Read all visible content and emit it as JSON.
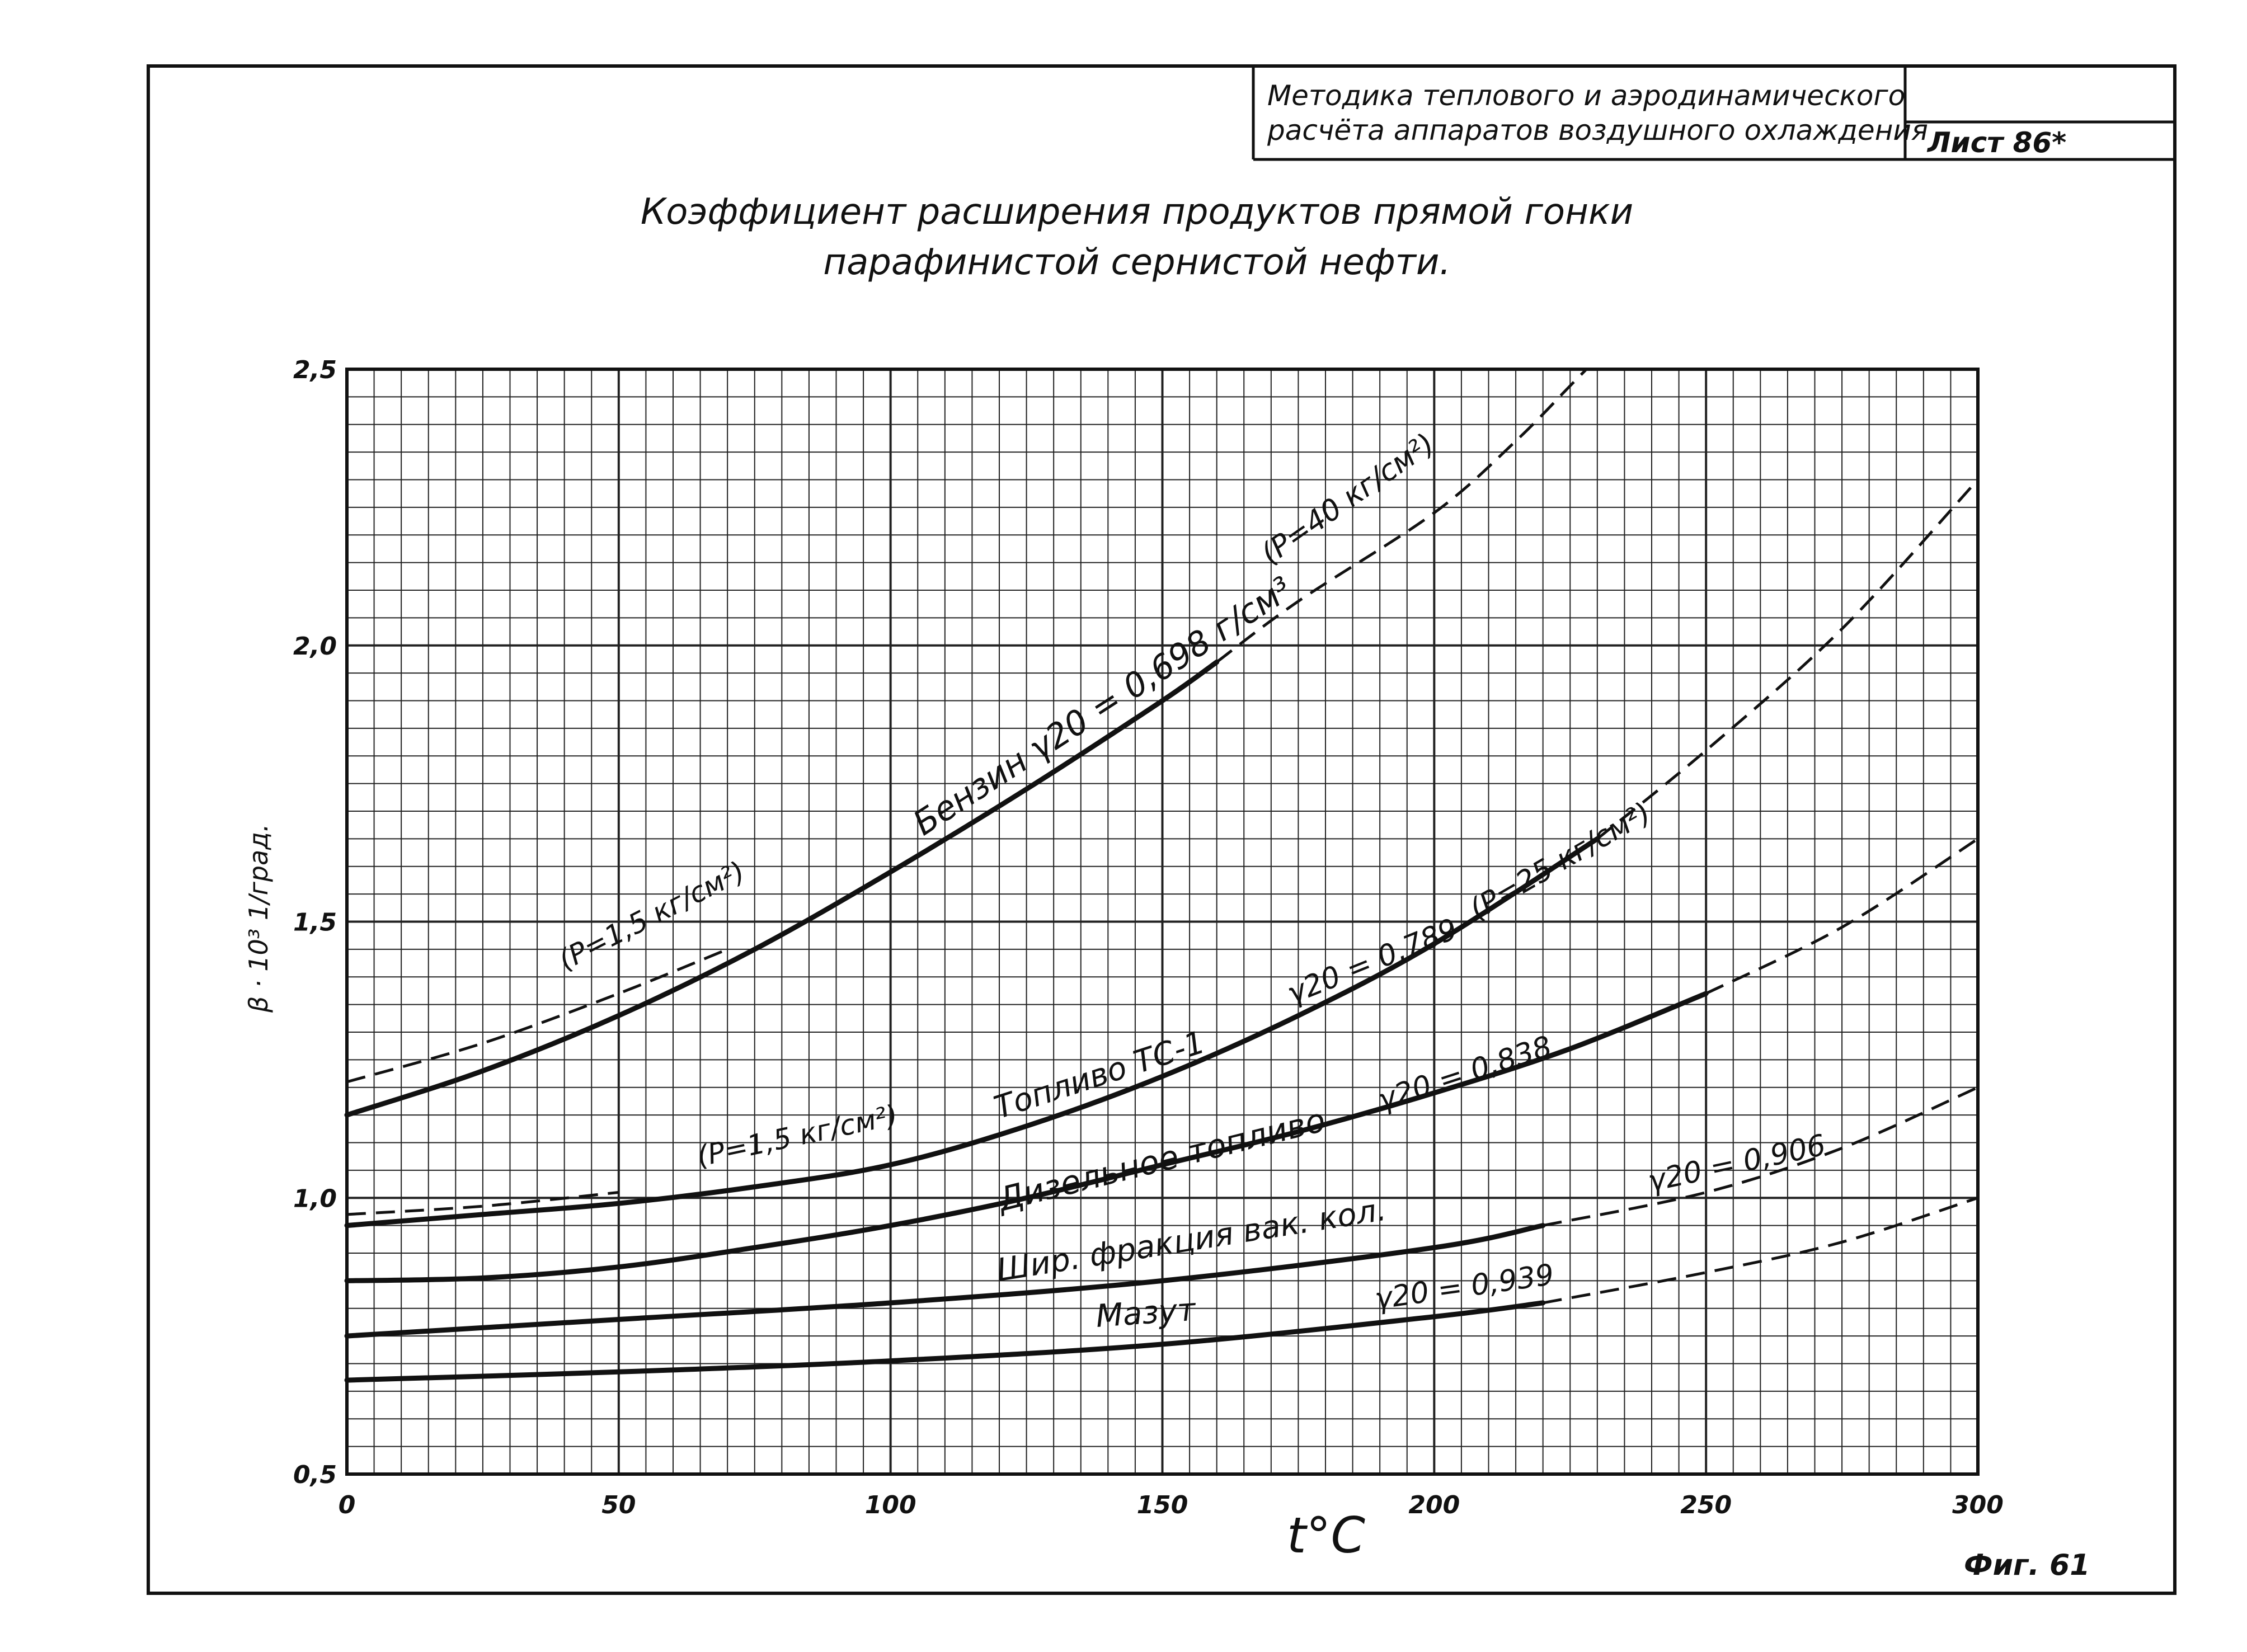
{
  "title_block": {
    "line1": "Методика теплового и аэродинамического",
    "line2": "расчёта аппаратов воздушного охлаждения",
    "sheet_label": "Лист 86*"
  },
  "figure_label": "Фиг. 61",
  "chart_data": {
    "type": "line",
    "title": "Коэффициент расширения продуктов прямой гонки",
    "subtitle": "парафинистой сернистой нефти.",
    "xlabel": "t°C",
    "ylabel": "β · 10³   1/град.",
    "xlim": [
      0,
      300
    ],
    "ylim": [
      0.5,
      2.5
    ],
    "x_ticks": [
      0,
      50,
      100,
      150,
      200,
      250,
      300
    ],
    "x_tick_labels": [
      "0",
      "50",
      "100",
      "150",
      "200",
      "250",
      "300"
    ],
    "y_ticks": [
      0.5,
      1.0,
      1.5,
      2.0,
      2.5
    ],
    "y_tick_labels": [
      "0,5",
      "1,0",
      "1,5",
      "2,0",
      "2,5"
    ],
    "grid": true,
    "grid_minor_x": 5,
    "grid_minor_y": 0.05,
    "series": [
      {
        "name": "Бензин γ20 = 0,698 г/см³",
        "values": [
          [
            0,
            1.15
          ],
          [
            25,
            1.23
          ],
          [
            50,
            1.33
          ],
          [
            75,
            1.45
          ],
          [
            100,
            1.59
          ],
          [
            125,
            1.74
          ],
          [
            150,
            1.9
          ],
          [
            160,
            1.97
          ]
        ],
        "dashed_values": [
          [
            160,
            1.97
          ],
          [
            175,
            2.08
          ],
          [
            200,
            2.24
          ],
          [
            215,
            2.37
          ],
          [
            225,
            2.47
          ],
          [
            228,
            2.5
          ]
        ]
      },
      {
        "name": "(P=1,5 кг/см²)",
        "values": [],
        "dashed_values": [
          [
            0,
            1.21
          ],
          [
            25,
            1.28
          ],
          [
            50,
            1.37
          ],
          [
            70,
            1.45
          ]
        ]
      },
      {
        "name": "Топливо ТС-1 γ20 = 0,789",
        "values": [
          [
            0,
            0.95
          ],
          [
            25,
            0.97
          ],
          [
            50,
            0.99
          ],
          [
            75,
            1.02
          ],
          [
            100,
            1.06
          ],
          [
            125,
            1.13
          ],
          [
            150,
            1.22
          ],
          [
            175,
            1.33
          ],
          [
            200,
            1.46
          ],
          [
            230,
            1.65
          ]
        ],
        "dashed_values": [
          [
            230,
            1.65
          ],
          [
            250,
            1.81
          ],
          [
            275,
            2.03
          ],
          [
            300,
            2.3
          ]
        ]
      },
      {
        "name": "(P=1,5 кг/см²)",
        "values": [],
        "dashed_values": [
          [
            0,
            0.97
          ],
          [
            25,
            0.985
          ],
          [
            50,
            1.01
          ]
        ]
      },
      {
        "name": "Дизельное топливо γ20 = 0,838",
        "values": [
          [
            0,
            0.85
          ],
          [
            25,
            0.855
          ],
          [
            50,
            0.875
          ],
          [
            75,
            0.91
          ],
          [
            100,
            0.95
          ],
          [
            125,
            1.0
          ],
          [
            150,
            1.06
          ],
          [
            175,
            1.12
          ],
          [
            200,
            1.19
          ],
          [
            225,
            1.27
          ],
          [
            250,
            1.37
          ]
        ],
        "dashed_values": [
          [
            250,
            1.37
          ],
          [
            275,
            1.49
          ],
          [
            300,
            1.65
          ]
        ]
      },
      {
        "name": "Шир. фракция вак. кол. γ20 = 0,906",
        "values": [
          [
            0,
            0.75
          ],
          [
            50,
            0.78
          ],
          [
            100,
            0.81
          ],
          [
            150,
            0.85
          ],
          [
            200,
            0.91
          ],
          [
            220,
            0.95
          ]
        ],
        "dashed_values": [
          [
            220,
            0.95
          ],
          [
            250,
            1.01
          ],
          [
            275,
            1.09
          ],
          [
            300,
            1.2
          ]
        ]
      },
      {
        "name": "Мазут γ20 = 0,939",
        "values": [
          [
            0,
            0.67
          ],
          [
            50,
            0.685
          ],
          [
            100,
            0.705
          ],
          [
            150,
            0.735
          ],
          [
            200,
            0.785
          ],
          [
            220,
            0.81
          ]
        ],
        "dashed_values": [
          [
            220,
            0.81
          ],
          [
            250,
            0.865
          ],
          [
            275,
            0.92
          ],
          [
            300,
            1.0
          ]
        ]
      }
    ],
    "annotations": [
      "Бензин γ20 = 0,698 г/см³",
      "(P=40 кг/см²)",
      "(P=1,5 кг/см²)",
      "(P=25 кг/см²)",
      "γ20 = 0,789",
      "Топливо ТС-1",
      "(P=1,5 кг/см²)",
      "γ20 = 0,838",
      "Дизельное топливо",
      "γ20 = 0,906",
      "Шир. фракция вак. кол.",
      "γ20 = 0,939",
      "Мазут"
    ]
  }
}
